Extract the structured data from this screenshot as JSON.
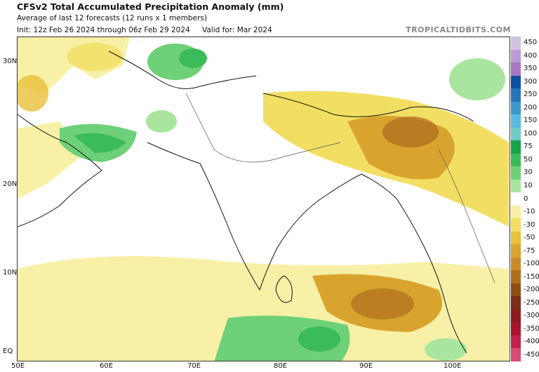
{
  "header": {
    "title": "CFSv2 Total Accumulated Precipitation Anomaly (mm)",
    "subtitle": "Average of last 12 forecasts (12 runs x 1 members)",
    "init": "Init: 12z Feb 26 2024 through 06z Feb 29 2024",
    "valid": "Valid for: Mar 2024",
    "brand": "TROPICALTIDBITS.COM"
  },
  "axes": {
    "lat_labels": [
      "30N",
      "20N",
      "10N",
      "EQ"
    ],
    "lon_labels": [
      "50E",
      "60E",
      "70E",
      "80E",
      "90E",
      "100E"
    ]
  },
  "colorbar": {
    "labels": [
      "450",
      "400",
      "350",
      "300",
      "250",
      "200",
      "150",
      "100",
      "75",
      "50",
      "30",
      "10",
      "0",
      "-10",
      "-30",
      "-50",
      "-75",
      "-100",
      "-150",
      "-200",
      "-250",
      "-300",
      "-350",
      "-400",
      "-450"
    ],
    "colors": [
      "#d1c3e0",
      "#bb9bd2",
      "#a777c4",
      "#0d4fa0",
      "#2a73b8",
      "#3d97cf",
      "#5bb8df",
      "#6fc9c6",
      "#16a34a",
      "#3cbb5a",
      "#6fd07a",
      "#a9e59f",
      "#ffffff",
      "#f7f0a6",
      "#f2de63",
      "#e8c13a",
      "#d9a42e",
      "#c98a2a",
      "#b06d1f",
      "#8e4f14",
      "#7a2d18",
      "#8c1b1b",
      "#a8162e",
      "#c2224d",
      "#d94a76"
    ]
  }
}
